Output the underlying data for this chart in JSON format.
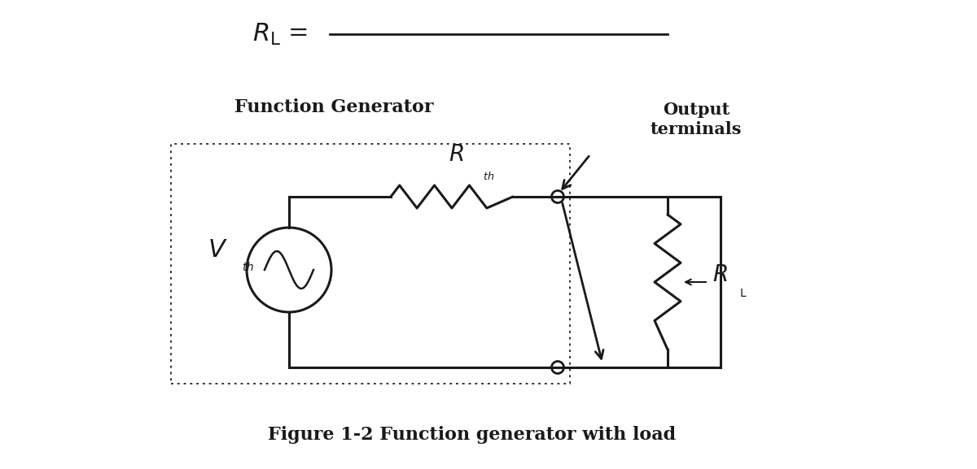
{
  "bg_color": "#ffffff",
  "line_color": "#1a1a1a",
  "box_dotted_color": "#333333",
  "caption": "Figure 1-2 Function generator with load"
}
